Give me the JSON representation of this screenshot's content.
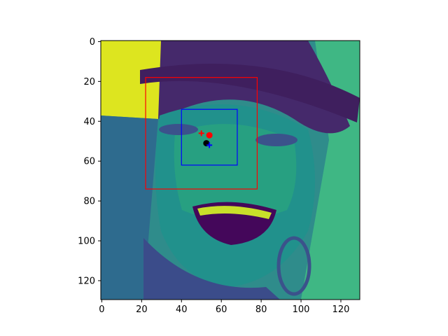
{
  "figure": {
    "image_description_name": "viridis face image",
    "image_size": 130,
    "colormap_colors": [
      "#440154",
      "#3b528b",
      "#21918c",
      "#5ec962",
      "#fde725"
    ]
  },
  "axes": {
    "xlim": [
      -0.5,
      129.5
    ],
    "ylim": [
      129.5,
      -0.5
    ],
    "x_ticks": [
      0,
      20,
      40,
      60,
      80,
      100,
      120
    ],
    "y_ticks": [
      0,
      20,
      40,
      60,
      80,
      100,
      120
    ]
  },
  "overlays": {
    "outer_box": {
      "x0": 22,
      "y0": 18,
      "x1": 78,
      "y1": 74,
      "color": "#ff0000"
    },
    "inner_box": {
      "x0": 40,
      "y0": 34,
      "x1": 68,
      "y1": 62,
      "color": "#0000ff"
    },
    "points": [
      {
        "name": "red-plus-marker",
        "marker": "plus",
        "x": 50,
        "y": 46,
        "color": "#ff0000"
      },
      {
        "name": "red-dot-marker",
        "marker": "dot",
        "x": 54,
        "y": 47,
        "color": "#ff0000"
      },
      {
        "name": "black-dot-marker",
        "marker": "dot",
        "x": 52.5,
        "y": 51,
        "color": "#000000"
      },
      {
        "name": "blue-plus-marker",
        "marker": "plus",
        "x": 54,
        "y": 52,
        "color": "#0000ff"
      }
    ]
  }
}
